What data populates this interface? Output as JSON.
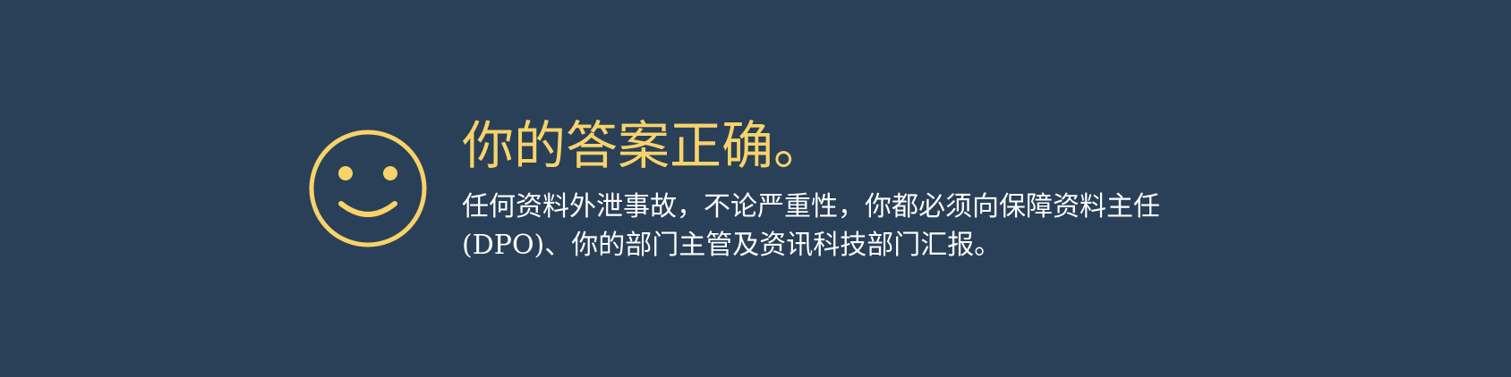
{
  "feedback": {
    "icon": "smiley-face-icon",
    "accent_color": "#f7d36a",
    "background_color": "#2a4058",
    "headline": "你的答案正确。",
    "message": "任何资料外泄事故，不论严重性，你都必须向保障资料主任(DPO)、你的部门主管及资讯科技部门汇报。"
  }
}
